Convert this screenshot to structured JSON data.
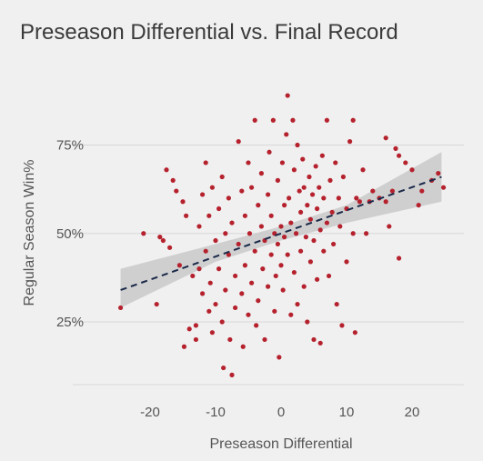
{
  "colors": {
    "background": "#f0f0f0",
    "grid": "#d8d8d8",
    "point": "#b5222e",
    "trend": "#1b2a4a",
    "band": "#c9c9c9",
    "text": "#555555"
  },
  "chart_data": {
    "type": "scatter",
    "title": "Preseason Differential vs. Final Record",
    "xlabel": "Preseason Differential",
    "ylabel": "Regular Season Win%",
    "xlim": [
      -26,
      26
    ],
    "ylim": [
      0.05,
      0.92
    ],
    "x_ticks": [
      -20,
      -10,
      0,
      10,
      20
    ],
    "x_tick_labels": [
      "-20",
      "-10",
      "0",
      "10",
      "20"
    ],
    "y_ticks": [
      0.25,
      0.5,
      0.75
    ],
    "y_tick_labels": [
      "25%",
      "50%",
      "75%"
    ],
    "grid": "horizontal",
    "trend_line": {
      "x": [
        -24.5,
        24.5
      ],
      "y": [
        0.34,
        0.66
      ],
      "style": "dashed"
    },
    "confidence_band": {
      "x": [
        -24.5,
        -10,
        0,
        10,
        24.5
      ],
      "lower": [
        0.29,
        0.42,
        0.48,
        0.53,
        0.59
      ],
      "upper": [
        0.4,
        0.47,
        0.52,
        0.58,
        0.73
      ]
    },
    "points": [
      [
        -24.5,
        0.29
      ],
      [
        -21,
        0.5
      ],
      [
        -19,
        0.3
      ],
      [
        -18.5,
        0.49
      ],
      [
        -18,
        0.48
      ],
      [
        -17.5,
        0.68
      ],
      [
        -17,
        0.46
      ],
      [
        -16.5,
        0.65
      ],
      [
        -16,
        0.62
      ],
      [
        -15.5,
        0.41
      ],
      [
        -15,
        0.59
      ],
      [
        -14.8,
        0.18
      ],
      [
        -14.5,
        0.55
      ],
      [
        -14,
        0.23
      ],
      [
        -13.5,
        0.38
      ],
      [
        -13,
        0.2
      ],
      [
        -13,
        0.24
      ],
      [
        -12.5,
        0.4
      ],
      [
        -12.5,
        0.52
      ],
      [
        -12,
        0.33
      ],
      [
        -12,
        0.61
      ],
      [
        -11.5,
        0.45
      ],
      [
        -11.5,
        0.7
      ],
      [
        -11,
        0.28
      ],
      [
        -11,
        0.55
      ],
      [
        -10.8,
        0.36
      ],
      [
        -10.5,
        0.63
      ],
      [
        -10.5,
        0.22
      ],
      [
        -10,
        0.48
      ],
      [
        -10,
        0.3
      ],
      [
        -9.5,
        0.57
      ],
      [
        -9.5,
        0.4
      ],
      [
        -9,
        0.66
      ],
      [
        -9,
        0.25
      ],
      [
        -8.8,
        0.12
      ],
      [
        -8.5,
        0.5
      ],
      [
        -8.5,
        0.34
      ],
      [
        -8,
        0.6
      ],
      [
        -8,
        0.44
      ],
      [
        -7.8,
        0.2
      ],
      [
        -7.5,
        0.1
      ],
      [
        -7.5,
        0.53
      ],
      [
        -7,
        0.38
      ],
      [
        -7,
        0.29
      ],
      [
        -6.5,
        0.76
      ],
      [
        -6.5,
        0.47
      ],
      [
        -6,
        0.62
      ],
      [
        -6,
        0.33
      ],
      [
        -5.8,
        0.18
      ],
      [
        -5.5,
        0.55
      ],
      [
        -5.5,
        0.41
      ],
      [
        -5,
        0.7
      ],
      [
        -5,
        0.27
      ],
      [
        -4.8,
        0.5
      ],
      [
        -4.5,
        0.36
      ],
      [
        -4.5,
        0.63
      ],
      [
        -4,
        0.82
      ],
      [
        -4,
        0.45
      ],
      [
        -3.8,
        0.24
      ],
      [
        -3.5,
        0.58
      ],
      [
        -3.5,
        0.31
      ],
      [
        -3,
        0.52
      ],
      [
        -3,
        0.67
      ],
      [
        -2.8,
        0.4
      ],
      [
        -2.5,
        0.2
      ],
      [
        -2.5,
        0.48
      ],
      [
        -2,
        0.61
      ],
      [
        -2,
        0.35
      ],
      [
        -1.8,
        0.73
      ],
      [
        -1.5,
        0.44
      ],
      [
        -1.5,
        0.55
      ],
      [
        -1.2,
        0.82
      ],
      [
        -1,
        0.5
      ],
      [
        -1,
        0.28
      ],
      [
        -0.8,
        0.38
      ],
      [
        -0.5,
        0.65
      ],
      [
        -0.5,
        0.47
      ],
      [
        -0.3,
        0.15
      ],
      [
        0,
        0.52
      ],
      [
        0,
        0.41
      ],
      [
        0.2,
        0.7
      ],
      [
        0.3,
        0.34
      ],
      [
        0.5,
        0.58
      ],
      [
        0.5,
        0.49
      ],
      [
        0.8,
        0.78
      ],
      [
        1,
        0.89
      ],
      [
        1,
        0.44
      ],
      [
        1.2,
        0.6
      ],
      [
        1.5,
        0.27
      ],
      [
        1.5,
        0.53
      ],
      [
        1.8,
        0.82
      ],
      [
        2,
        0.68
      ],
      [
        2,
        0.39
      ],
      [
        2.3,
        0.5
      ],
      [
        2.5,
        0.75
      ],
      [
        2.5,
        0.3
      ],
      [
        2.8,
        0.62
      ],
      [
        3,
        0.45
      ],
      [
        3,
        0.56
      ],
      [
        3.3,
        0.71
      ],
      [
        3.5,
        0.35
      ],
      [
        3.5,
        0.63
      ],
      [
        3.8,
        0.49
      ],
      [
        4,
        0.58
      ],
      [
        4,
        0.25
      ],
      [
        4.3,
        0.66
      ],
      [
        4.5,
        0.42
      ],
      [
        4.5,
        0.54
      ],
      [
        4.8,
        0.61
      ],
      [
        5,
        0.2
      ],
      [
        5,
        0.48
      ],
      [
        5.3,
        0.69
      ],
      [
        5.5,
        0.37
      ],
      [
        5.5,
        0.57
      ],
      [
        5.8,
        0.63
      ],
      [
        6,
        0.19
      ],
      [
        6,
        0.51
      ],
      [
        6.3,
        0.72
      ],
      [
        6.5,
        0.45
      ],
      [
        6.5,
        0.6
      ],
      [
        7,
        0.82
      ],
      [
        7,
        0.53
      ],
      [
        7.3,
        0.38
      ],
      [
        7.5,
        0.65
      ],
      [
        7.8,
        0.56
      ],
      [
        8,
        0.47
      ],
      [
        8.3,
        0.7
      ],
      [
        8.5,
        0.3
      ],
      [
        8.8,
        0.6
      ],
      [
        9,
        0.52
      ],
      [
        9.3,
        0.24
      ],
      [
        9.5,
        0.66
      ],
      [
        10,
        0.57
      ],
      [
        10,
        0.42
      ],
      [
        10.5,
        0.76
      ],
      [
        11,
        0.82
      ],
      [
        11,
        0.5
      ],
      [
        11.3,
        0.22
      ],
      [
        11.5,
        0.6
      ],
      [
        12,
        0.59
      ],
      [
        12.5,
        0.68
      ],
      [
        13,
        0.5
      ],
      [
        13.5,
        0.59
      ],
      [
        14,
        0.62
      ],
      [
        15,
        0.6
      ],
      [
        16,
        0.77
      ],
      [
        16,
        0.59
      ],
      [
        16.5,
        0.52
      ],
      [
        17,
        0.62
      ],
      [
        17.5,
        0.74
      ],
      [
        18,
        0.72
      ],
      [
        18,
        0.43
      ],
      [
        19,
        0.7
      ],
      [
        20,
        0.68
      ],
      [
        21,
        0.58
      ],
      [
        21.5,
        0.62
      ],
      [
        23,
        0.65
      ],
      [
        24,
        0.67
      ],
      [
        24.8,
        0.63
      ]
    ]
  }
}
